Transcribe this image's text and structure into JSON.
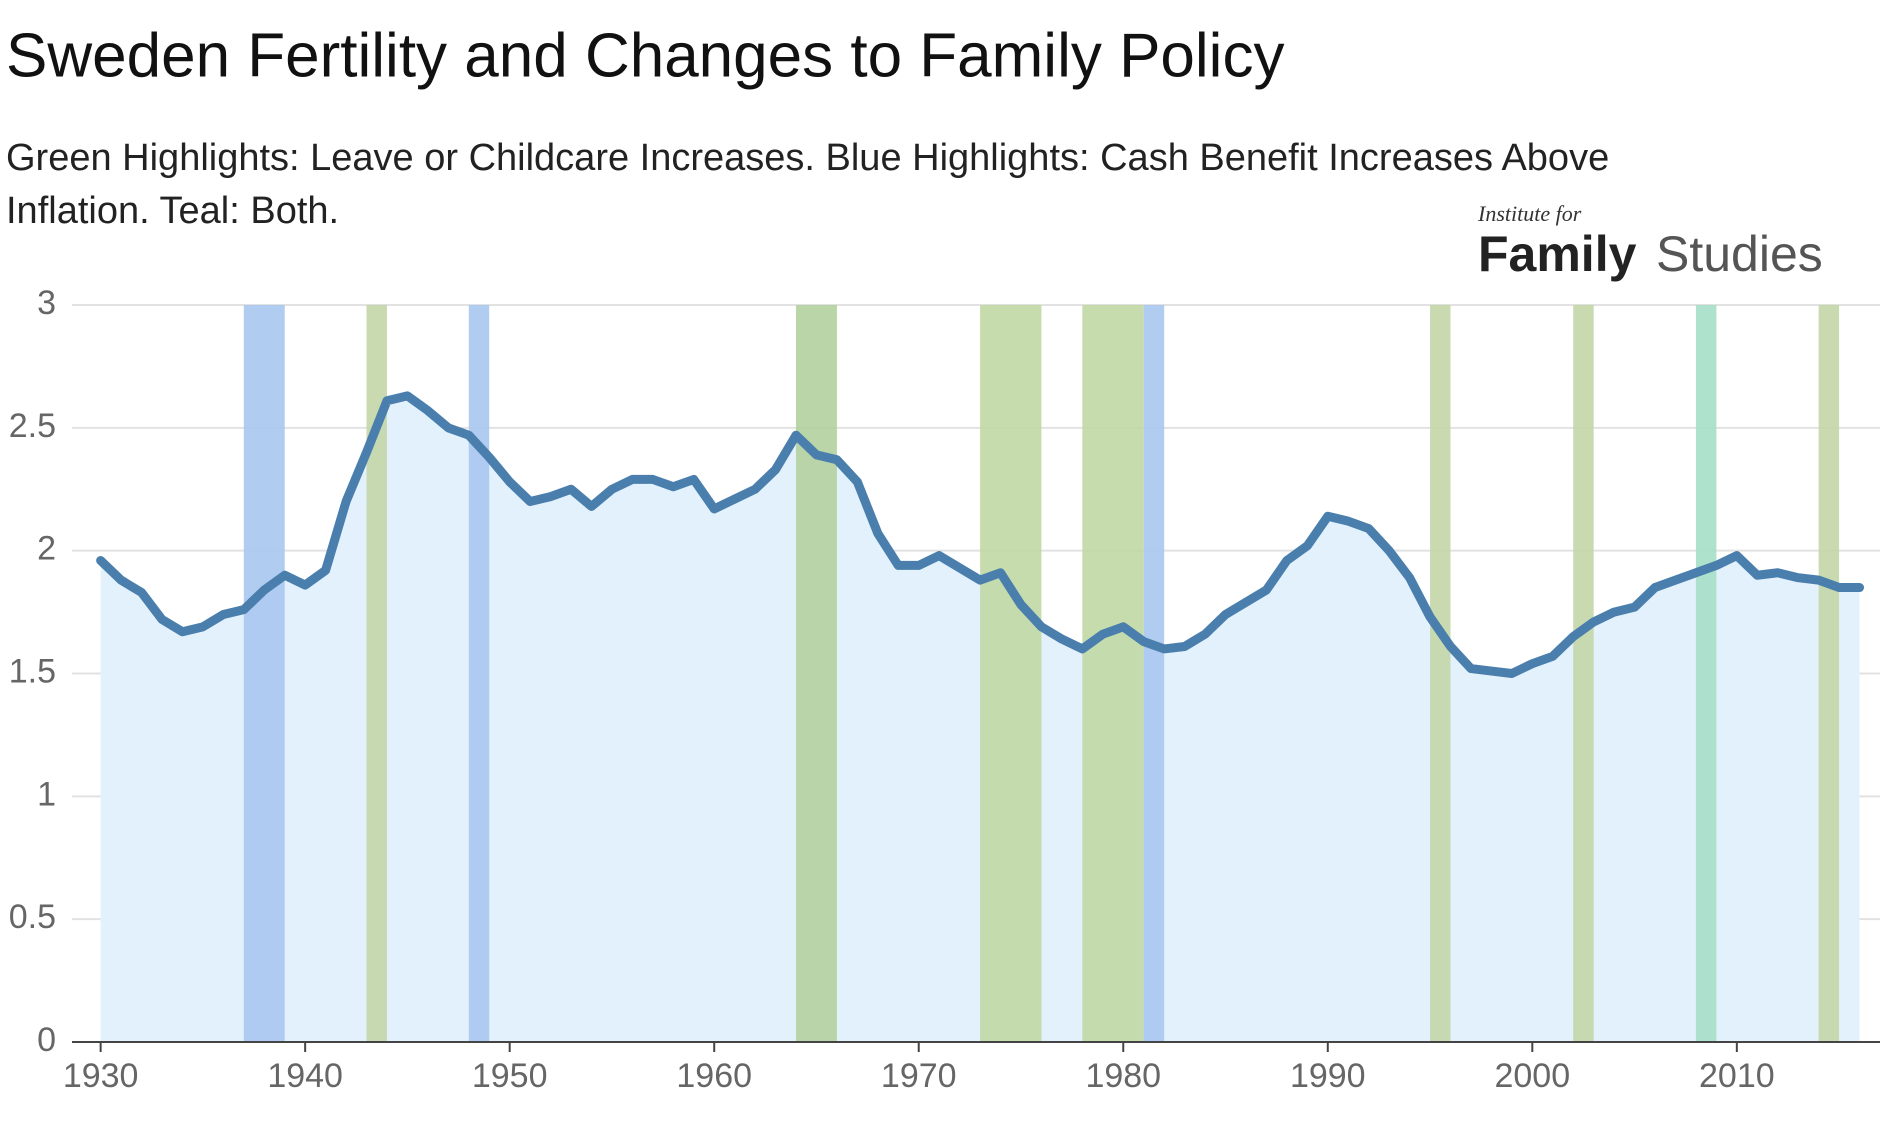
{
  "chart_data": {
    "type": "area_line",
    "title": "Sweden Fertility and Changes to Family Policy",
    "subtitle": [
      "Green Highlights: Leave or Childcare Increases. Blue Highlights: Cash Benefit Increases Above",
      "Inflation. Teal: Both."
    ],
    "logo": {
      "small": "Institute for",
      "bold": "Family",
      "light": "Studies"
    },
    "x": [
      1930,
      1931,
      1932,
      1933,
      1934,
      1935,
      1936,
      1937,
      1938,
      1939,
      1940,
      1941,
      1942,
      1943,
      1944,
      1945,
      1946,
      1947,
      1948,
      1949,
      1950,
      1951,
      1952,
      1953,
      1954,
      1955,
      1956,
      1957,
      1958,
      1959,
      1960,
      1961,
      1962,
      1963,
      1964,
      1965,
      1966,
      1967,
      1968,
      1969,
      1970,
      1971,
      1972,
      1973,
      1974,
      1975,
      1976,
      1977,
      1978,
      1979,
      1980,
      1981,
      1982,
      1983,
      1984,
      1985,
      1986,
      1987,
      1988,
      1989,
      1990,
      1991,
      1992,
      1993,
      1994,
      1995,
      1996,
      1997,
      1998,
      1999,
      2000,
      2001,
      2002,
      2003,
      2004,
      2005,
      2006,
      2007,
      2008,
      2009,
      2010,
      2011,
      2012,
      2013,
      2014,
      2015,
      2016
    ],
    "series": [
      {
        "name": "Fertility",
        "color": "#4a7fad",
        "fill": "#e3f1fd",
        "values": [
          1.96,
          1.88,
          1.83,
          1.72,
          1.67,
          1.69,
          1.74,
          1.76,
          1.84,
          1.9,
          1.86,
          1.92,
          2.2,
          2.4,
          2.61,
          2.63,
          2.57,
          2.5,
          2.47,
          2.38,
          2.28,
          2.2,
          2.22,
          2.25,
          2.18,
          2.25,
          2.29,
          2.29,
          2.26,
          2.29,
          2.17,
          2.21,
          2.25,
          2.33,
          2.47,
          2.39,
          2.37,
          2.28,
          2.07,
          1.94,
          1.94,
          1.98,
          1.93,
          1.88,
          1.91,
          1.78,
          1.69,
          1.64,
          1.6,
          1.66,
          1.69,
          1.63,
          1.6,
          1.61,
          1.66,
          1.74,
          1.79,
          1.84,
          1.96,
          2.02,
          2.14,
          2.12,
          2.09,
          2.0,
          1.89,
          1.73,
          1.61,
          1.52,
          1.51,
          1.5,
          1.54,
          1.57,
          1.65,
          1.71,
          1.75,
          1.77,
          1.85,
          1.88,
          1.91,
          1.94,
          1.98,
          1.9,
          1.91,
          1.89,
          1.88,
          1.85,
          1.85
        ]
      }
    ],
    "highlights": [
      {
        "start": 1937,
        "end": 1939,
        "color": "#a9c6ef"
      },
      {
        "start": 1943,
        "end": 1944,
        "color": "#c3d6a7"
      },
      {
        "start": 1948,
        "end": 1949,
        "color": "#a9c6ef"
      },
      {
        "start": 1964,
        "end": 1966,
        "color": "#b3d09e"
      },
      {
        "start": 1973,
        "end": 1976,
        "color": "#c0d8a4"
      },
      {
        "start": 1978,
        "end": 1981,
        "color": "#c0d8a4"
      },
      {
        "start": 1981,
        "end": 1982,
        "color": "#a9c6ef"
      },
      {
        "start": 1995,
        "end": 1996,
        "color": "#c3d6a7"
      },
      {
        "start": 2002,
        "end": 2003,
        "color": "#c3d6a7"
      },
      {
        "start": 2008,
        "end": 2009,
        "color": "#a6dfc8"
      },
      {
        "start": 2014,
        "end": 2015,
        "color": "#c3d6a7"
      }
    ],
    "xlim": [
      1928.6,
      2017
    ],
    "xticks": [
      1930,
      1940,
      1950,
      1960,
      1970,
      1980,
      1990,
      2000,
      2010
    ],
    "ylim": [
      0,
      3
    ],
    "yticks": [
      0,
      0.5,
      1,
      1.5,
      2,
      2.5,
      3
    ],
    "grid": true
  }
}
